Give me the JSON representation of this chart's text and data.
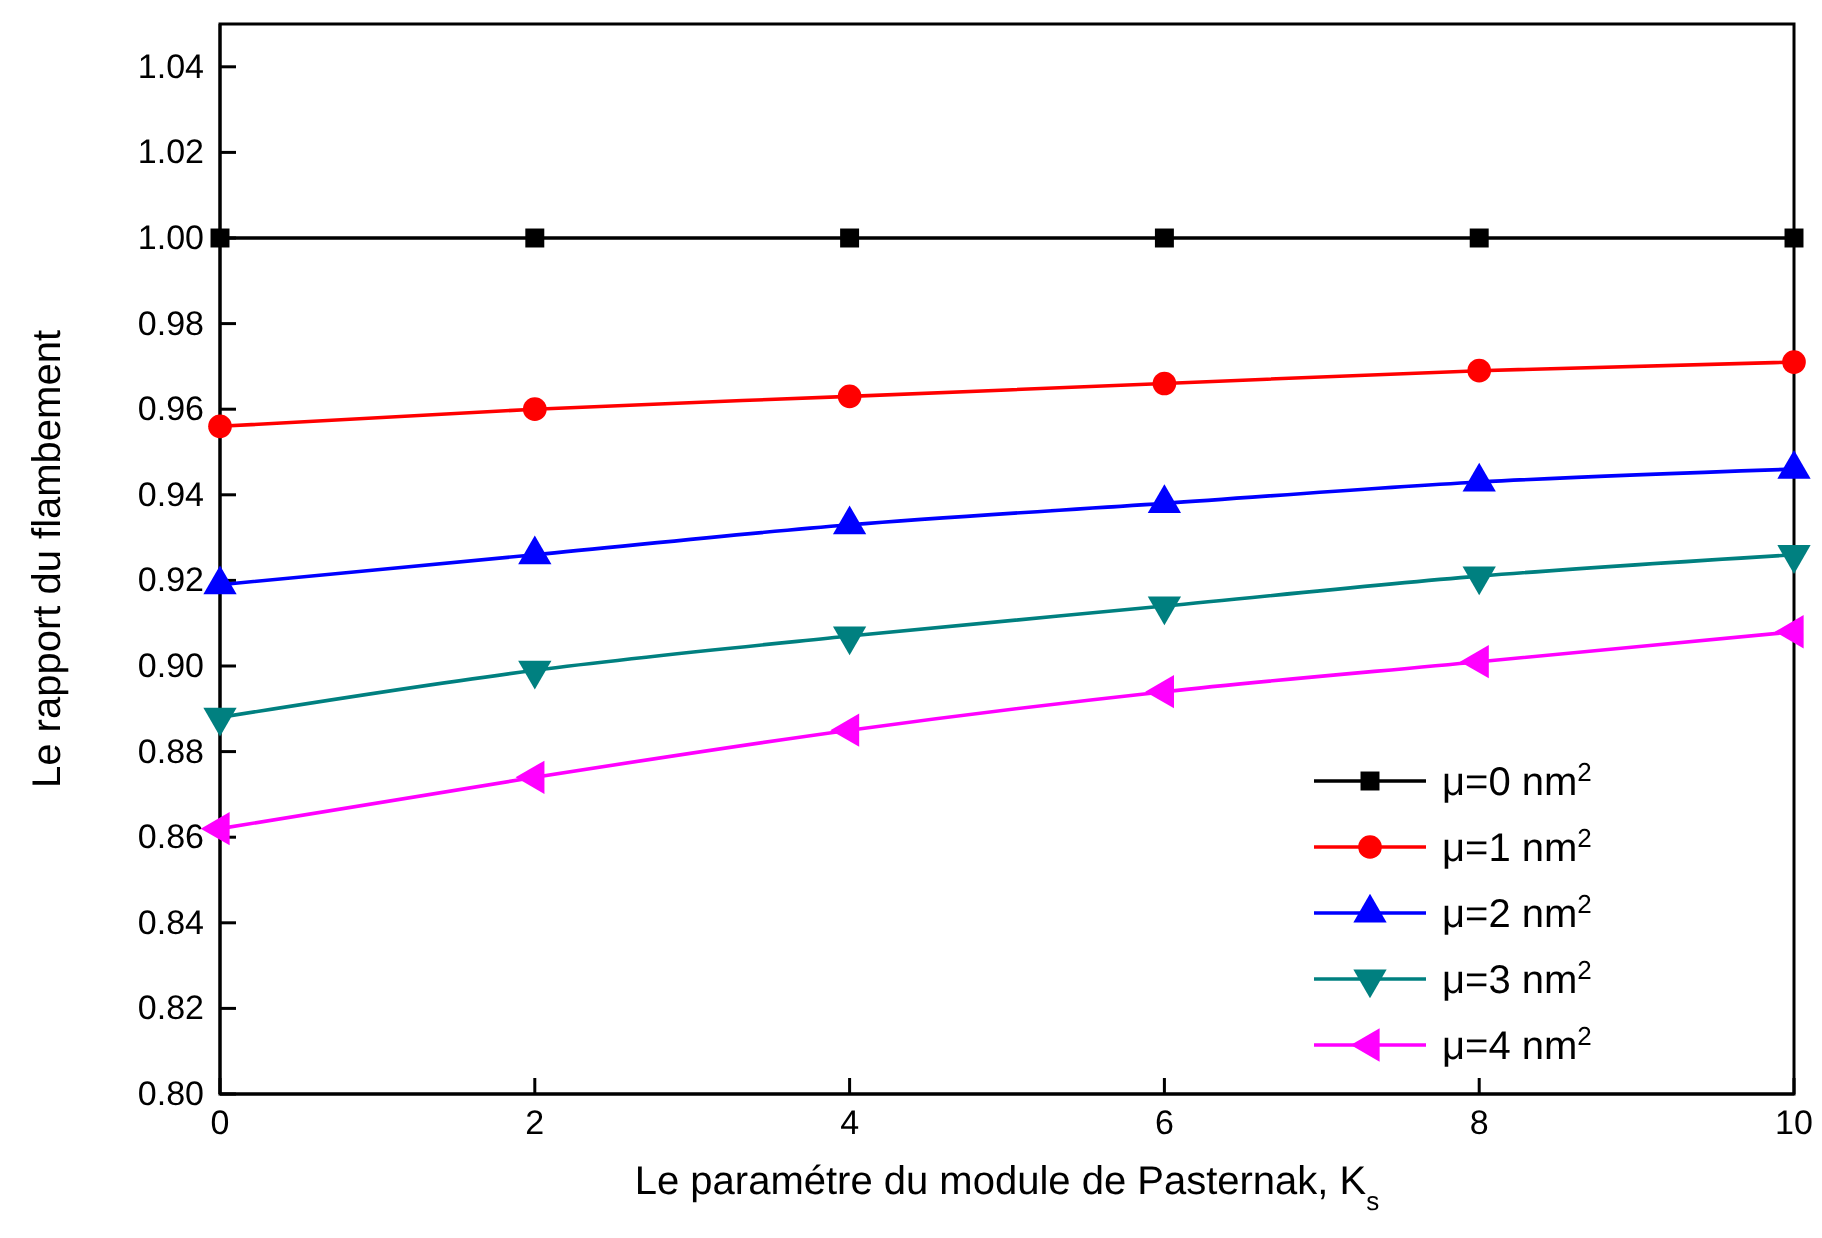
{
  "chart_data": {
    "type": "line",
    "xlabel": "Le paramétre du module de Pasternak, K$_{s}$",
    "ylabel": "Le rapport du flambement",
    "x": [
      0,
      2,
      4,
      6,
      8,
      10
    ],
    "xlim": [
      0,
      10
    ],
    "xticks": [
      0,
      2,
      4,
      6,
      8,
      10
    ],
    "ylim": [
      0.8,
      1.05
    ],
    "yticks": [
      {
        "value": 0.8,
        "label": "0.80"
      },
      {
        "value": 0.82,
        "label": "0.82"
      },
      {
        "value": 0.84,
        "label": "0.84"
      },
      {
        "value": 0.86,
        "label": "0.86"
      },
      {
        "value": 0.88,
        "label": "0.88"
      },
      {
        "value": 0.9,
        "label": "0.90"
      },
      {
        "value": 0.92,
        "label": "0.92"
      },
      {
        "value": 0.94,
        "label": "0.94"
      },
      {
        "value": 0.96,
        "label": "0.96"
      },
      {
        "value": 0.98,
        "label": "0.98"
      },
      {
        "value": 1.0,
        "label": "1.00"
      },
      {
        "value": 1.02,
        "label": "1.02"
      },
      {
        "value": 1.04,
        "label": "1.04"
      }
    ],
    "legend": "bottom right",
    "grid": false,
    "line_style": "solid",
    "series": [
      {
        "name": "μ=0 nm$^{2}$",
        "color": "#000000",
        "marker": "square",
        "values": [
          1.0,
          1.0,
          1.0,
          1.0,
          1.0,
          1.0
        ]
      },
      {
        "name": "μ=1 nm$^{2}$",
        "color": "#ff0000",
        "marker": "circle",
        "values": [
          0.956,
          0.96,
          0.963,
          0.966,
          0.969,
          0.971
        ]
      },
      {
        "name": "μ=2 nm$^{2}$",
        "color": "#0000ff",
        "marker": "triangle",
        "values": [
          0.919,
          0.926,
          0.933,
          0.938,
          0.943,
          0.946
        ]
      },
      {
        "name": "μ=3 nm$^{2}$",
        "color": "#008080",
        "marker": "triangle-down",
        "values": [
          0.888,
          0.899,
          0.907,
          0.914,
          0.921,
          0.926
        ]
      },
      {
        "name": "μ=4 nm$^{2}$",
        "color": "#ff00ff",
        "marker": "triangle-left",
        "values": [
          0.862,
          0.874,
          0.885,
          0.894,
          0.901,
          0.908
        ]
      }
    ]
  }
}
